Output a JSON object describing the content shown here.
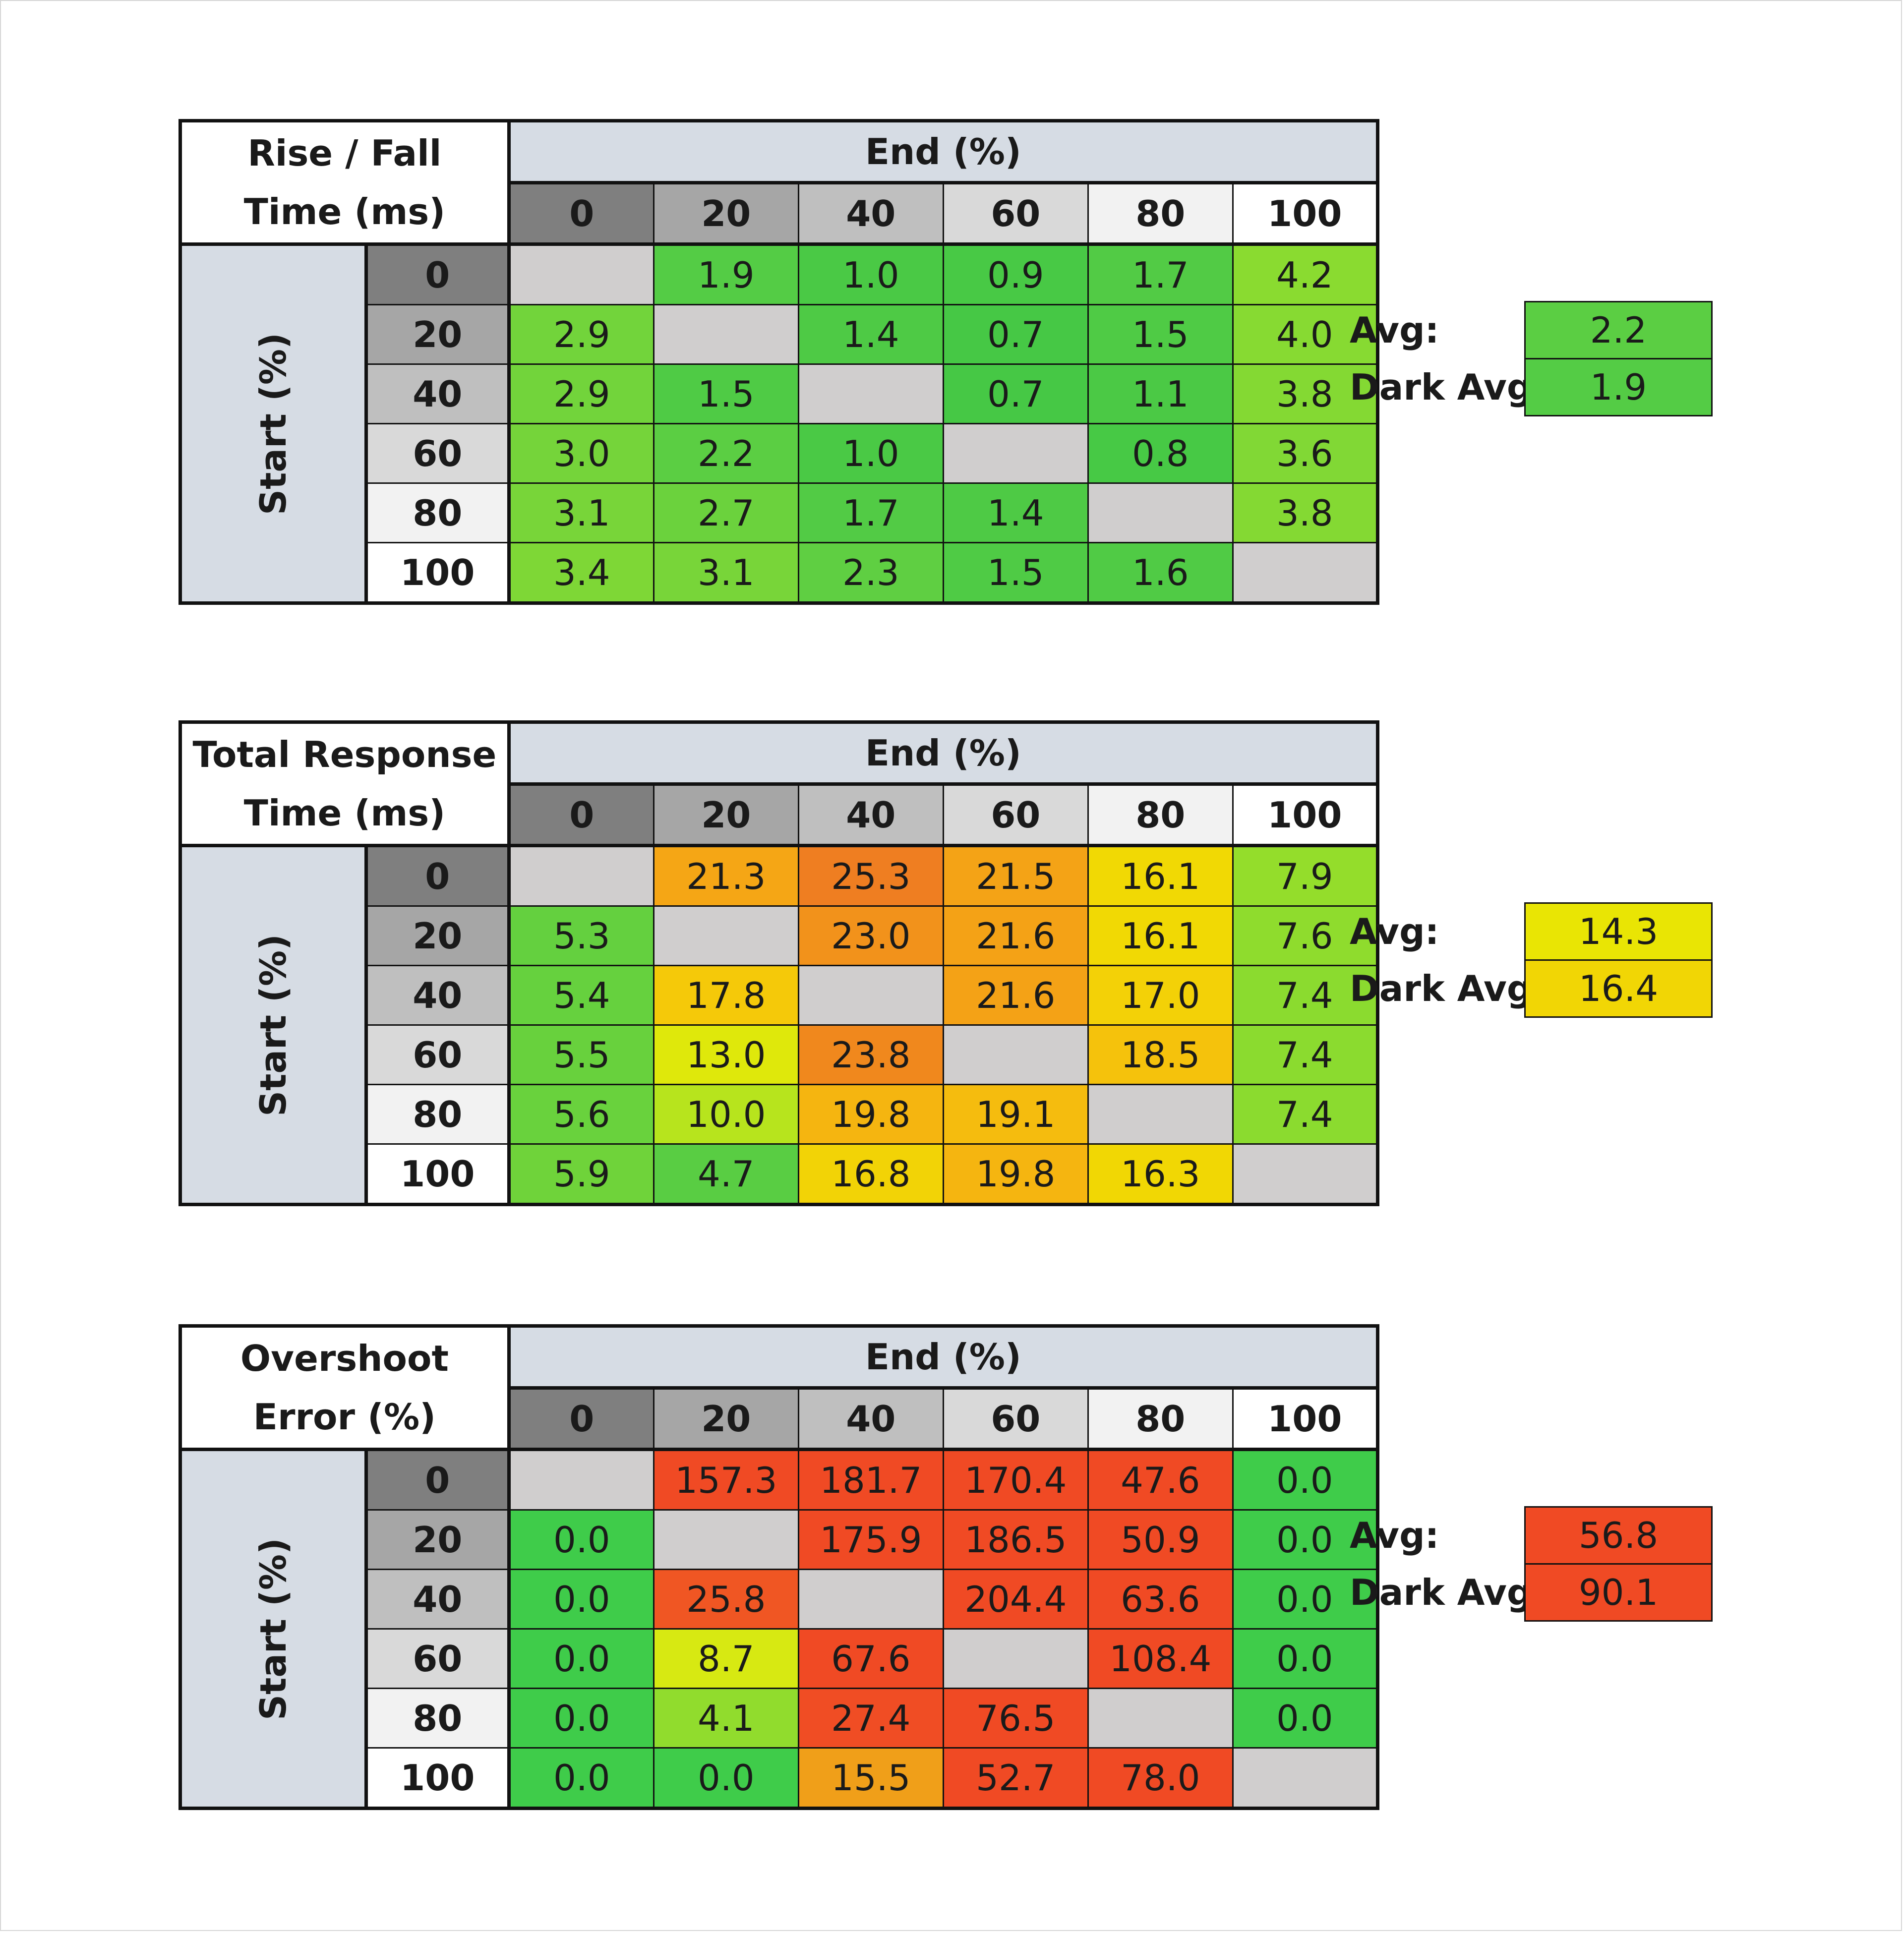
{
  "chart_data": [
    {
      "type": "table",
      "title_lines": [
        "Rise / Fall",
        "Time (ms)"
      ],
      "col_header": "End (%)",
      "row_header": "Start (%)",
      "levels": [
        "0",
        "20",
        "40",
        "60",
        "80",
        "100"
      ],
      "values": [
        [
          "",
          "1.9",
          "1.0",
          "0.9",
          "1.7",
          "4.2"
        ],
        [
          "2.9",
          "",
          "1.4",
          "0.7",
          "1.5",
          "4.0"
        ],
        [
          "2.9",
          "1.5",
          "",
          "0.7",
          "1.1",
          "3.8"
        ],
        [
          "3.0",
          "2.2",
          "1.0",
          "",
          "0.8",
          "3.6"
        ],
        [
          "3.1",
          "2.7",
          "1.7",
          "1.4",
          "",
          "3.8"
        ],
        [
          "3.4",
          "3.1",
          "2.3",
          "1.5",
          "1.6",
          ""
        ]
      ],
      "avg_label": "Avg:",
      "avg": "2.2",
      "dark_avg_label": "Dark Avg:",
      "dark_avg": "1.9",
      "scale": "rise"
    },
    {
      "type": "table",
      "title_lines": [
        "Total Response",
        "Time (ms)"
      ],
      "col_header": "End (%)",
      "row_header": "Start (%)",
      "levels": [
        "0",
        "20",
        "40",
        "60",
        "80",
        "100"
      ],
      "values": [
        [
          "",
          "21.3",
          "25.3",
          "21.5",
          "16.1",
          "7.9"
        ],
        [
          "5.3",
          "",
          "23.0",
          "21.6",
          "16.1",
          "7.6"
        ],
        [
          "5.4",
          "17.8",
          "",
          "21.6",
          "17.0",
          "7.4"
        ],
        [
          "5.5",
          "13.0",
          "23.8",
          "",
          "18.5",
          "7.4"
        ],
        [
          "5.6",
          "10.0",
          "19.8",
          "19.1",
          "",
          "7.4"
        ],
        [
          "5.9",
          "4.7",
          "16.8",
          "19.8",
          "16.3",
          ""
        ]
      ],
      "avg_label": "Avg:",
      "avg": "14.3",
      "dark_avg_label": "Dark Avg:",
      "dark_avg": "16.4",
      "scale": "total"
    },
    {
      "type": "table",
      "title_lines": [
        "Overshoot",
        "Error (%)"
      ],
      "col_header": "End (%)",
      "row_header": "Start (%)",
      "levels": [
        "0",
        "20",
        "40",
        "60",
        "80",
        "100"
      ],
      "values": [
        [
          "",
          "157.3",
          "181.7",
          "170.4",
          "47.6",
          "0.0"
        ],
        [
          "0.0",
          "",
          "175.9",
          "186.5",
          "50.9",
          "0.0"
        ],
        [
          "0.0",
          "25.8",
          "",
          "204.4",
          "63.6",
          "0.0"
        ],
        [
          "0.0",
          "8.7",
          "67.6",
          "",
          "108.4",
          "0.0"
        ],
        [
          "0.0",
          "4.1",
          "27.4",
          "76.5",
          "",
          "0.0"
        ],
        [
          "0.0",
          "0.0",
          "15.5",
          "52.7",
          "78.0",
          ""
        ]
      ],
      "avg_label": "Avg:",
      "avg": "56.8",
      "dark_avg_label": "Dark Avg:",
      "dark_avg": "90.1",
      "scale": "overshoot"
    }
  ],
  "colors": {
    "header_blue_gray": "#d6dce4",
    "diagonal_gray": "#d0cece",
    "level_shades": [
      "#7f7f7f",
      "#a6a6a6",
      "#bfbfbf",
      "#d9d9d9",
      "#f2f2f2",
      "#ffffff"
    ],
    "green": "#4fcc46",
    "light_green": "#8fdc2e",
    "yellow": "#f0e800",
    "orange": "#f5b010",
    "dark_orange": "#f0861e",
    "red": "#f04a24"
  }
}
